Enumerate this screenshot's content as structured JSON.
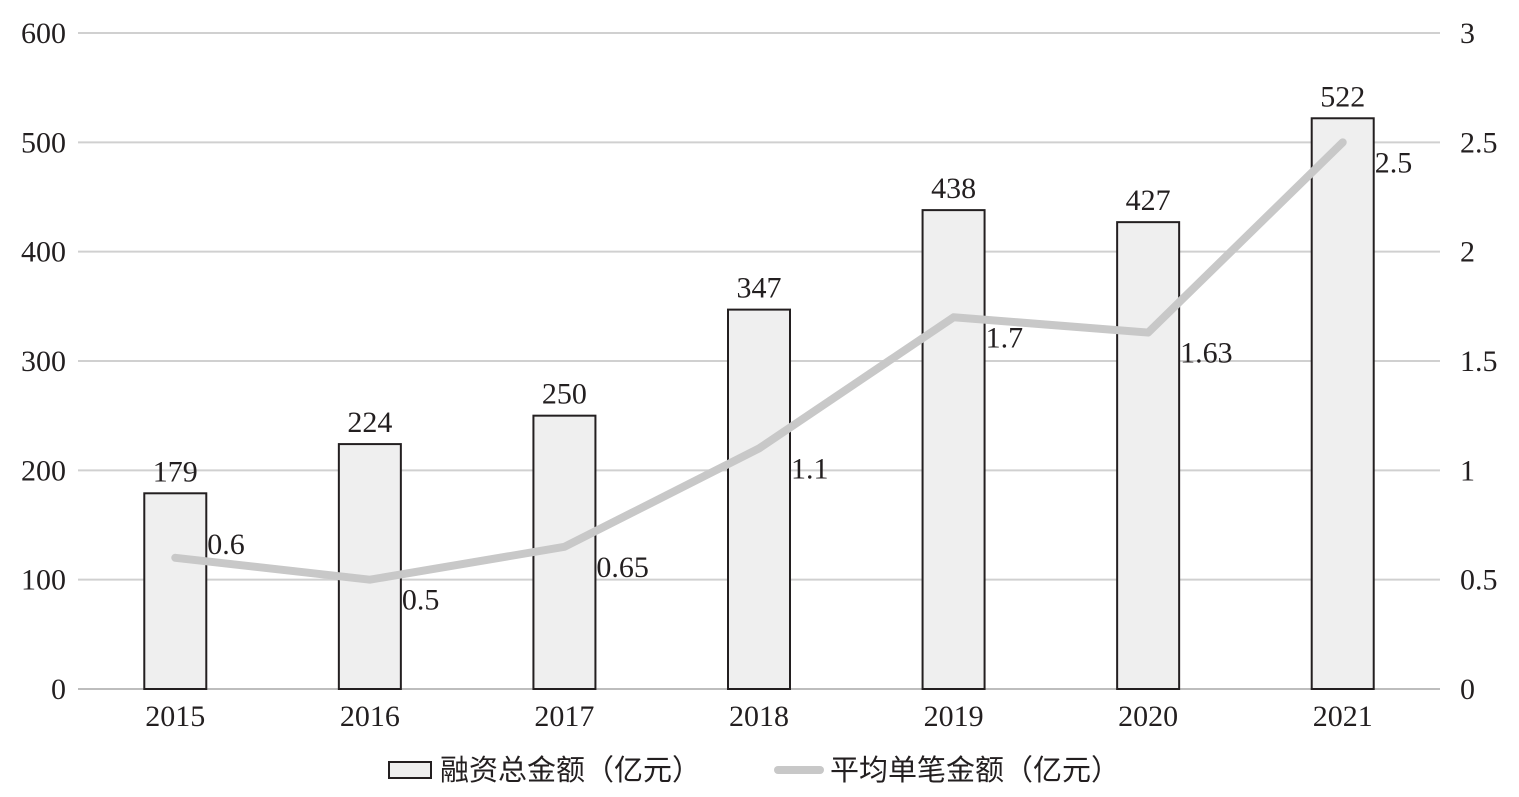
{
  "chart_data": {
    "type": "bar",
    "categories": [
      "2015",
      "2016",
      "2017",
      "2018",
      "2019",
      "2020",
      "2021"
    ],
    "series": [
      {
        "name": "融资总金额（亿元）",
        "type": "bar",
        "axis": "left",
        "values": [
          179,
          224,
          250,
          347,
          438,
          427,
          522
        ],
        "color": "#efefef",
        "stroke": "#231f20"
      },
      {
        "name": "平均单笔金额（亿元）",
        "type": "line",
        "axis": "right",
        "values": [
          0.6,
          0.5,
          0.65,
          1.1,
          1.7,
          1.63,
          2.5
        ],
        "color": "#c8c8c8"
      }
    ],
    "y_left": {
      "ylim": [
        0,
        600
      ],
      "ticks": [
        "0",
        "100",
        "200",
        "300",
        "400",
        "500",
        "600"
      ]
    },
    "y_right": {
      "ylim": [
        0,
        3
      ],
      "ticks": [
        "0",
        "0.5",
        "1",
        "1.5",
        "2",
        "2.5",
        "3"
      ]
    },
    "title": "",
    "xlabel": "",
    "ylabel": "",
    "grid": true,
    "gridColor": "#d0d0d0",
    "legend": "bottom-center"
  }
}
